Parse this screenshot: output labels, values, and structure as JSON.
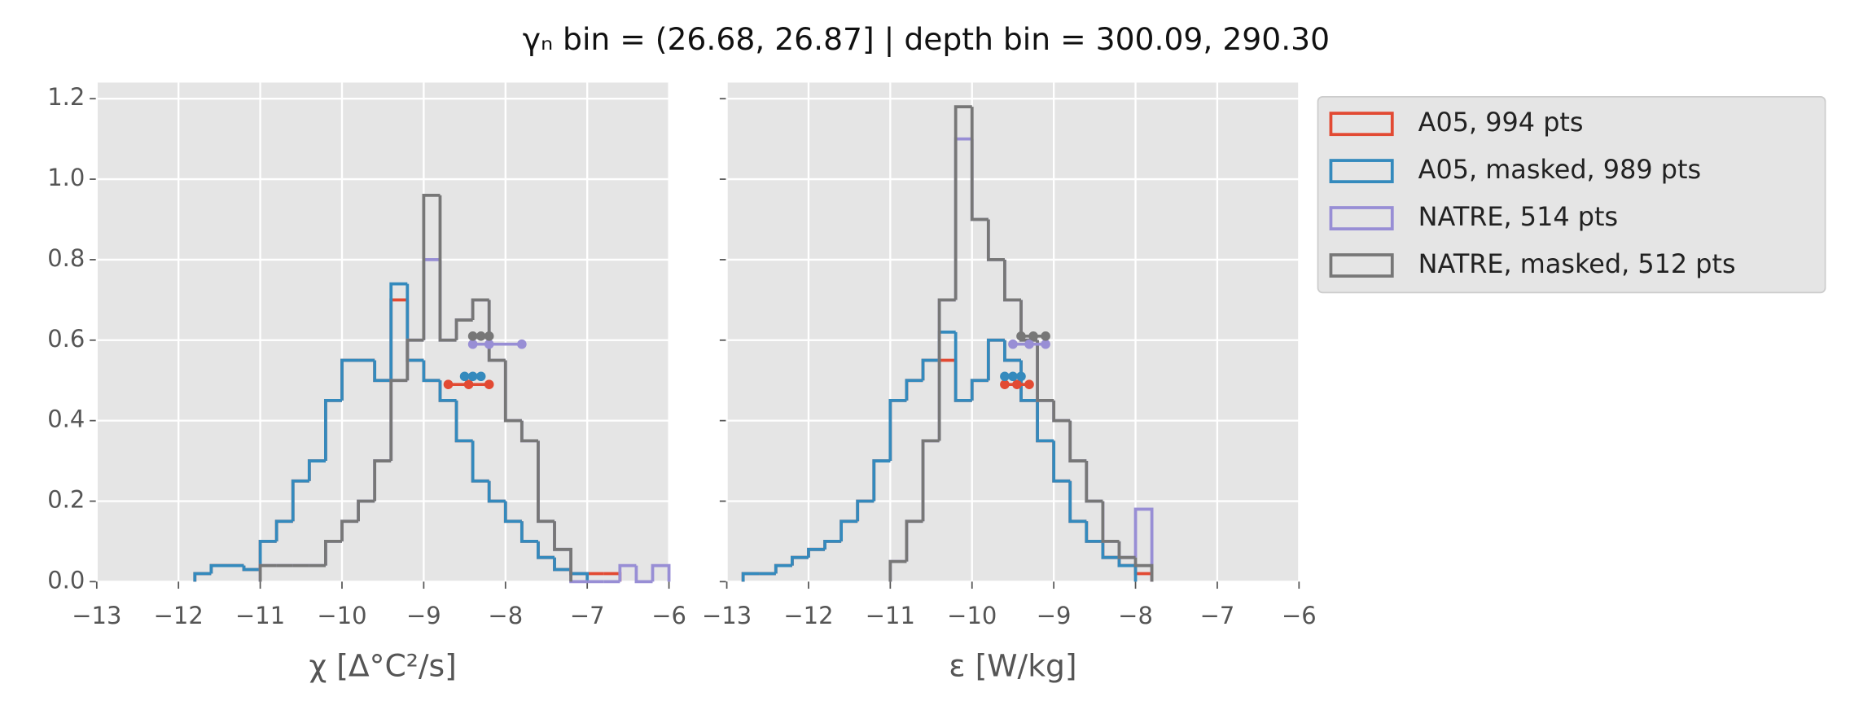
{
  "chart_data": [
    {
      "type": "histogram",
      "title": "γₙ bin = (26.68, 26.87] | depth bin = 300.09, 290.30",
      "xlabel": "χ [Δ°C²/s]",
      "xlim": [
        -13,
        -6
      ],
      "xticks": [
        {
          "value": -13,
          "label": "−13"
        },
        {
          "value": -12,
          "label": "−12"
        },
        {
          "value": -11,
          "label": "−11"
        },
        {
          "value": -10,
          "label": "−10"
        },
        {
          "value": -9,
          "label": "−9"
        },
        {
          "value": -8,
          "label": "−8"
        },
        {
          "value": -7,
          "label": "−7"
        },
        {
          "value": -6,
          "label": "−6"
        }
      ],
      "ylim": [
        0,
        1.24
      ],
      "yticks": [
        {
          "value": 0,
          "label": "0.0"
        },
        0.2,
        0.4,
        0.6,
        0.8,
        {
          "value": 1,
          "label": "1.0"
        },
        1.2
      ],
      "grid": true,
      "series": [
        {
          "color": "#E24A33",
          "bins": [
            -11.8,
            -11.6,
            -11.4,
            -11.2,
            -11.0,
            -10.8,
            -10.6,
            -10.4,
            -10.2,
            -10.0,
            -9.8,
            -9.6,
            -9.4,
            -9.2,
            -9.0,
            -8.8,
            -8.6,
            -8.4,
            -8.2,
            -8.0,
            -7.8,
            -7.6,
            -7.4,
            -7.2,
            -7.0,
            -6.8,
            -6.6
          ],
          "values": [
            0.02,
            0.04,
            0.04,
            0.03,
            0.1,
            0.15,
            0.25,
            0.3,
            0.45,
            0.55,
            0.55,
            0.5,
            0.7,
            0.55,
            0.5,
            0.45,
            0.35,
            0.25,
            0.2,
            0.15,
            0.1,
            0.06,
            0.03,
            0.02,
            0.02,
            0.02
          ]
        },
        {
          "color": "#348ABD",
          "bins": [
            -11.8,
            -11.6,
            -11.4,
            -11.2,
            -11.0,
            -10.8,
            -10.6,
            -10.4,
            -10.2,
            -10.0,
            -9.8,
            -9.6,
            -9.4,
            -9.2,
            -9.0,
            -8.8,
            -8.6,
            -8.4,
            -8.2,
            -8.0,
            -7.8,
            -7.6,
            -7.4,
            -7.2,
            -7.0
          ],
          "values": [
            0.02,
            0.04,
            0.04,
            0.03,
            0.1,
            0.15,
            0.25,
            0.3,
            0.45,
            0.55,
            0.55,
            0.5,
            0.74,
            0.55,
            0.5,
            0.45,
            0.35,
            0.25,
            0.2,
            0.15,
            0.1,
            0.06,
            0.03,
            0.02
          ]
        },
        {
          "color": "#988ED5",
          "bins": [
            -11.0,
            -10.8,
            -10.6,
            -10.4,
            -10.2,
            -10.0,
            -9.8,
            -9.6,
            -9.4,
            -9.2,
            -9.0,
            -8.8,
            -8.6,
            -8.4,
            -8.2,
            -8.0,
            -7.8,
            -7.6,
            -7.4,
            -7.2,
            -7.0,
            -6.8,
            -6.6,
            -6.4,
            -6.2,
            -6.0
          ],
          "values": [
            0.04,
            0.04,
            0.04,
            0.04,
            0.1,
            0.15,
            0.2,
            0.3,
            0.5,
            0.6,
            0.8,
            0.6,
            0.65,
            0.7,
            0.55,
            0.4,
            0.35,
            0.15,
            0.08,
            0,
            0,
            0,
            0.04,
            0,
            0.04
          ]
        },
        {
          "color": "#777777",
          "bins": [
            -11.0,
            -10.8,
            -10.6,
            -10.4,
            -10.2,
            -10.0,
            -9.8,
            -9.6,
            -9.4,
            -9.2,
            -9.0,
            -8.8,
            -8.6,
            -8.4,
            -8.2,
            -8.0,
            -7.8,
            -7.6,
            -7.4,
            -7.2
          ],
          "values": [
            0.04,
            0.04,
            0.04,
            0.04,
            0.1,
            0.15,
            0.2,
            0.3,
            0.5,
            0.6,
            0.96,
            0.6,
            0.65,
            0.7,
            0.55,
            0.4,
            0.35,
            0.15,
            0.08
          ]
        }
      ],
      "markers": [
        {
          "color": "#E24A33",
          "x": [
            -8.7,
            -8.45,
            -8.2
          ],
          "y": 0.49
        },
        {
          "color": "#348ABD",
          "x": [
            -8.5,
            -8.4,
            -8.3
          ],
          "y": 0.51
        },
        {
          "color": "#988ED5",
          "x": [
            -8.4,
            -8.2,
            -7.8
          ],
          "y": 0.59
        },
        {
          "color": "#777777",
          "x": [
            -8.4,
            -8.3,
            -8.2
          ],
          "y": 0.61
        }
      ]
    },
    {
      "type": "histogram",
      "xlabel": "ε [W/kg]",
      "xlim": [
        -13,
        -6
      ],
      "xticks": [
        {
          "value": -13,
          "label": "−13"
        },
        {
          "value": -12,
          "label": "−12"
        },
        {
          "value": -11,
          "label": "−11"
        },
        {
          "value": -10,
          "label": "−10"
        },
        {
          "value": -9,
          "label": "−9"
        },
        {
          "value": -8,
          "label": "−8"
        },
        {
          "value": -7,
          "label": "−7"
        },
        {
          "value": -6,
          "label": "−6"
        }
      ],
      "sharey": true,
      "grid": true,
      "series": [
        {
          "name": "A05, 994 pts",
          "color": "#E24A33",
          "bins": [
            -12.8,
            -12.6,
            -12.4,
            -12.2,
            -12.0,
            -11.8,
            -11.6,
            -11.4,
            -11.2,
            -11.0,
            -10.8,
            -10.6,
            -10.4,
            -10.2,
            -10.0,
            -9.8,
            -9.6,
            -9.4,
            -9.2,
            -9.0,
            -8.8,
            -8.6,
            -8.4,
            -8.2,
            -8.0,
            -7.8
          ],
          "values": [
            0.02,
            0.02,
            0.04,
            0.06,
            0.08,
            0.1,
            0.15,
            0.2,
            0.3,
            0.45,
            0.5,
            0.55,
            0.55,
            0.45,
            0.5,
            0.6,
            0.55,
            0.45,
            0.35,
            0.25,
            0.15,
            0.1,
            0.06,
            0.04,
            0.02
          ]
        },
        {
          "name": "A05, masked,  989 pts",
          "color": "#348ABD",
          "bins": [
            -12.8,
            -12.6,
            -12.4,
            -12.2,
            -12.0,
            -11.8,
            -11.6,
            -11.4,
            -11.2,
            -11.0,
            -10.8,
            -10.6,
            -10.4,
            -10.2,
            -10.0,
            -9.8,
            -9.6,
            -9.4,
            -9.2,
            -9.0,
            -8.8,
            -8.6,
            -8.4,
            -8.2,
            -8.0
          ],
          "values": [
            0.02,
            0.02,
            0.04,
            0.06,
            0.08,
            0.1,
            0.15,
            0.2,
            0.3,
            0.45,
            0.5,
            0.55,
            0.62,
            0.45,
            0.5,
            0.6,
            0.55,
            0.45,
            0.35,
            0.25,
            0.15,
            0.1,
            0.06,
            0.04
          ]
        },
        {
          "name": "NATRE, 514 pts",
          "color": "#988ED5",
          "bins": [
            -11.0,
            -10.8,
            -10.6,
            -10.4,
            -10.2,
            -10.0,
            -9.8,
            -9.6,
            -9.4,
            -9.2,
            -9.0,
            -8.8,
            -8.6,
            -8.4,
            -8.2,
            -8.0,
            -7.8
          ],
          "values": [
            0.05,
            0.15,
            0.35,
            0.7,
            1.1,
            0.9,
            0.8,
            0.7,
            0.6,
            0.45,
            0.4,
            0.3,
            0.2,
            0.1,
            0.06,
            0.18
          ]
        },
        {
          "name": "NATRE, masked,  512 pts",
          "color": "#777777",
          "bins": [
            -11.0,
            -10.8,
            -10.6,
            -10.4,
            -10.2,
            -10.0,
            -9.8,
            -9.6,
            -9.4,
            -9.2,
            -9.0,
            -8.8,
            -8.6,
            -8.4,
            -8.2,
            -8.0,
            -7.8
          ],
          "values": [
            0.05,
            0.15,
            0.35,
            0.7,
            1.18,
            0.9,
            0.8,
            0.7,
            0.6,
            0.45,
            0.4,
            0.3,
            0.2,
            0.1,
            0.06,
            0.04
          ]
        }
      ],
      "markers": [
        {
          "color": "#E24A33",
          "x": [
            -9.6,
            -9.45,
            -9.3
          ],
          "y": 0.49
        },
        {
          "color": "#348ABD",
          "x": [
            -9.6,
            -9.5,
            -9.4
          ],
          "y": 0.51
        },
        {
          "color": "#988ED5",
          "x": [
            -9.5,
            -9.3,
            -9.1
          ],
          "y": 0.59
        },
        {
          "color": "#777777",
          "x": [
            -9.4,
            -9.25,
            -9.1
          ],
          "y": 0.61
        }
      ]
    }
  ]
}
